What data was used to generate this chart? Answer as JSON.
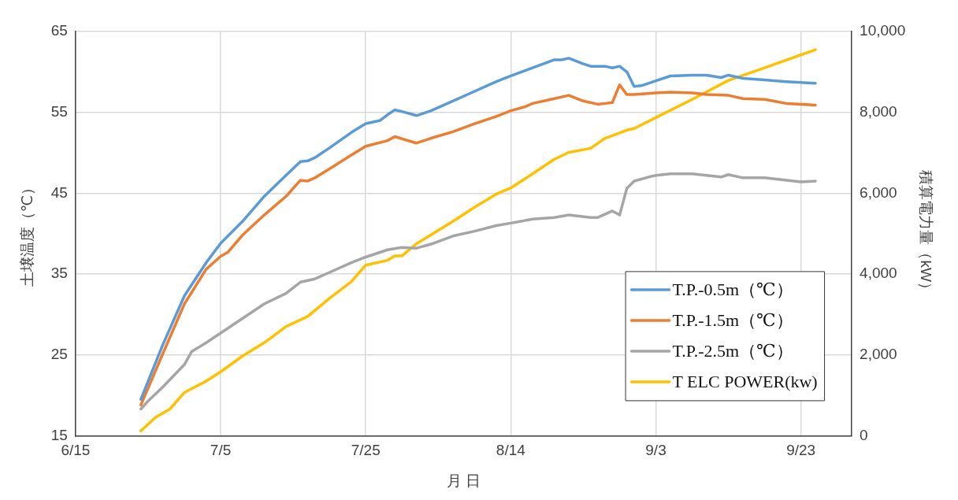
{
  "chart_data": {
    "type": "line",
    "xlabel": "月 日",
    "ylabel": "土壌温度（℃）",
    "y2label": "積算電力量（kW）",
    "xlim": [
      "--06-15",
      "--09-30"
    ],
    "xticks": [
      {
        "value": "--06-15",
        "label": "6/15"
      },
      {
        "value": "--07-05",
        "label": "7/5"
      },
      {
        "value": "--07-25",
        "label": "7/25"
      },
      {
        "value": "--08-14",
        "label": "8/14"
      },
      {
        "value": "--09-03",
        "label": "9/3"
      },
      {
        "value": "--09-23",
        "label": "9/23"
      }
    ],
    "ylim": [
      15,
      65
    ],
    "yticks": [
      15,
      25,
      35,
      45,
      55,
      65
    ],
    "y2lim": [
      0,
      10000
    ],
    "y2ticks": [
      0,
      {
        "value": 2000,
        "label": "2,000"
      },
      {
        "value": 4000,
        "label": "4,000"
      },
      {
        "value": 6000,
        "label": "6,000"
      },
      {
        "value": 8000,
        "label": "8,000"
      },
      {
        "value": 10000,
        "label": "10,000"
      }
    ],
    "grid": true,
    "legend": "bottom right",
    "marker": "none",
    "line_style": "solid",
    "series": [
      {
        "name": "T.P.-0.5m（℃）",
        "color": "#5b9bd5",
        "x": [
          "--06-24",
          "--06-27",
          "--06-30",
          "--07-03",
          "--07-05",
          "--07-08",
          "--07-11",
          "--07-14",
          "--07-16",
          "--07-17",
          "--07-18",
          "--07-20",
          "--07-23",
          "--07-25",
          "--07-27",
          "--07-28",
          "--07-29",
          "--07-30",
          "--08-01",
          "--08-03",
          "--08-06",
          "--08-09",
          "--08-12",
          "--08-14",
          "--08-17",
          "--08-20",
          "--08-21",
          "--08-22",
          "--08-24",
          "--08-25",
          "--08-26",
          "--08-27",
          "--08-28",
          "--08-29",
          "--08-30",
          "--08-31",
          "--09-01",
          "--09-03",
          "--09-05",
          "--09-08",
          "--09-10",
          "--09-12",
          "--09-13",
          "--09-15",
          "--09-18",
          "--09-21",
          "--09-25"
        ],
        "values": [
          19.5,
          26.2,
          32.3,
          36.4,
          38.8,
          41.5,
          44.6,
          47.2,
          48.9,
          49.0,
          49.4,
          50.6,
          52.5,
          53.6,
          54.0,
          54.7,
          55.3,
          55.1,
          54.6,
          55.2,
          56.4,
          57.6,
          58.8,
          59.5,
          60.5,
          61.5,
          61.5,
          61.7,
          61.0,
          60.7,
          60.7,
          60.7,
          60.5,
          60.7,
          60.0,
          58.2,
          58.3,
          58.9,
          59.5,
          59.6,
          59.6,
          59.3,
          59.6,
          59.2,
          59.0,
          58.8,
          58.6
        ]
      },
      {
        "name": "T.P.-1.5m（℃）",
        "color": "#ed7d31",
        "x": [
          "--06-24",
          "--06-27",
          "--06-30",
          "--07-03",
          "--07-05",
          "--07-06",
          "--07-08",
          "--07-11",
          "--07-14",
          "--07-16",
          "--07-17",
          "--07-18",
          "--07-20",
          "--07-23",
          "--07-25",
          "--07-28",
          "--07-29",
          "--08-01",
          "--08-03",
          "--08-06",
          "--08-09",
          "--08-12",
          "--08-14",
          "--08-16",
          "--08-17",
          "--08-20",
          "--08-22",
          "--08-24",
          "--08-26",
          "--08-27",
          "--08-28",
          "--08-29",
          "--08-30",
          "--08-31",
          "--09-03",
          "--09-05",
          "--09-08",
          "--09-10",
          "--09-13",
          "--09-15",
          "--09-18",
          "--09-21",
          "--09-25"
        ],
        "values": [
          18.8,
          25.1,
          31.3,
          35.6,
          37.2,
          37.7,
          39.8,
          42.3,
          44.6,
          46.6,
          46.5,
          46.9,
          48.0,
          49.7,
          50.8,
          51.5,
          52.0,
          51.2,
          51.8,
          52.6,
          53.6,
          54.5,
          55.2,
          55.7,
          56.1,
          56.7,
          57.1,
          56.4,
          56.0,
          56.1,
          56.2,
          58.4,
          57.2,
          57.2,
          57.4,
          57.5,
          57.4,
          57.2,
          57.1,
          56.7,
          56.6,
          56.1,
          55.9
        ]
      },
      {
        "name": "T.P.-2.5m（℃）",
        "color": "#a5a5a5",
        "x": [
          "--06-24",
          "--06-25",
          "--06-27",
          "--06-30",
          "--07-01",
          "--07-03",
          "--07-05",
          "--07-08",
          "--07-11",
          "--07-14",
          "--07-16",
          "--07-18",
          "--07-20",
          "--07-23",
          "--07-25",
          "--07-28",
          "--07-30",
          "--08-01",
          "--08-03",
          "--08-06",
          "--08-09",
          "--08-12",
          "--08-14",
          "--08-17",
          "--08-20",
          "--08-22",
          "--08-25",
          "--08-26",
          "--08-28",
          "--08-29",
          "--08-30",
          "--08-31",
          "--09-02",
          "--09-03",
          "--09-05",
          "--09-08",
          "--09-12",
          "--09-13",
          "--09-15",
          "--09-18",
          "--09-23",
          "--09-25"
        ],
        "values": [
          18.3,
          19.3,
          21.0,
          23.8,
          25.4,
          26.5,
          27.7,
          29.5,
          31.3,
          32.6,
          34.0,
          34.4,
          35.2,
          36.4,
          37.1,
          38.0,
          38.3,
          38.2,
          38.7,
          39.7,
          40.3,
          41.0,
          41.3,
          41.8,
          42.0,
          42.3,
          42.0,
          42.0,
          42.8,
          42.3,
          45.6,
          46.5,
          47.0,
          47.2,
          47.4,
          47.4,
          47.0,
          47.3,
          46.9,
          46.9,
          46.4,
          46.5
        ]
      },
      {
        "name": "T ELC POWER(kw)",
        "color": "#ffc000",
        "axis": "y2",
        "x": [
          "--06-24",
          "--06-26",
          "--06-28",
          "--06-30",
          "--07-03",
          "--07-05",
          "--07-08",
          "--07-11",
          "--07-14",
          "--07-17",
          "--07-20",
          "--07-23",
          "--07-25",
          "--07-28",
          "--07-29",
          "--07-30",
          "--08-01",
          "--08-06",
          "--08-09",
          "--08-12",
          "--08-14",
          "--08-17",
          "--08-20",
          "--08-22",
          "--08-25",
          "--08-27",
          "--08-30",
          "--08-31",
          "--09-03",
          "--09-08",
          "--09-13",
          "--09-18",
          "--09-25"
        ],
        "values": [
          120,
          450,
          660,
          1070,
          1350,
          1580,
          1970,
          2300,
          2700,
          2950,
          3400,
          3810,
          4220,
          4340,
          4450,
          4450,
          4750,
          5300,
          5650,
          5980,
          6130,
          6480,
          6840,
          7010,
          7110,
          7360,
          7560,
          7600,
          7870,
          8320,
          8790,
          9100,
          9550
        ]
      }
    ]
  }
}
